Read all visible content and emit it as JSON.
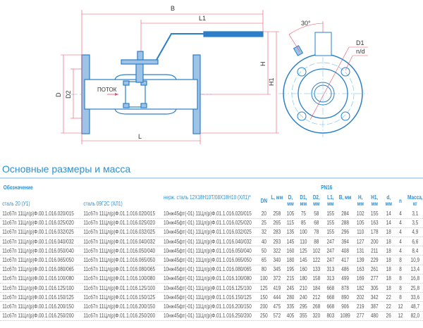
{
  "drawing": {
    "labels": {
      "B": "B",
      "L1": "L1",
      "H": "H",
      "H1": "H1",
      "D": "D",
      "D2": "D2",
      "flow": "ПОТОК",
      "L": "L",
      "angle": "30°",
      "D1": "D1",
      "nd": "n/d"
    }
  },
  "section_title": "Основные размеры и масса",
  "table": {
    "designation_header": "Обозначение",
    "group_header": "PN16",
    "columns": [
      "сталь 20 (У1)",
      "сталь 09Г2С (ХЛ1)",
      "нерж. сталь 12Х18Н10Т/08Х18Н10 (ХЛ1)*",
      "DN",
      "L, мм",
      "D, мм",
      "D1, мм",
      "D2, мм",
      "L1, мм",
      "B, мм",
      "H, мм",
      "H1, мм",
      "d, мм",
      "n",
      "Масса, кг"
    ],
    "rows": [
      [
        "11с67п 11Цл(р)Ф.00.1.016.020/015",
        "11с67п 11Цл(р)Ф.01.1.016.020/015",
        "10нж45фт(-01) 11Цл(р)Ф.01.1.016.020/015",
        "20",
        "258",
        "105",
        "75",
        "58",
        "155",
        "284",
        "102",
        "155",
        "14",
        "4",
        "3,1"
      ],
      [
        "11с67п 11Цл(р)Ф.00.1.016.025/020",
        "11с67п 11Цл(р)Ф.01.1.016.025/020",
        "10нж45фт(-01) 11Цл(р)Ф.01.1.016.025/020",
        "25",
        "265",
        "115",
        "85",
        "68",
        "155",
        "288",
        "105",
        "163",
        "14",
        "4",
        "3,5"
      ],
      [
        "11с67п 11Цл(р)Ф.00.1.016.032/025",
        "11с67п 11Цл(р)Ф.01.1.016.032/025",
        "10нж45фт(-01) 11Цл(р)Ф.01.1.016.032/025",
        "32",
        "283",
        "135",
        "100",
        "78",
        "155",
        "296",
        "110",
        "178",
        "18",
        "4",
        "4,9"
      ],
      [
        "11с67п 11Цл(р)Ф.00.1.016.040/032",
        "11с67п 11Цл(р)Ф.01.1.016.040/032",
        "10нж45фт(-01) 11Цл(р)Ф.01.1.016.040/032",
        "40",
        "293",
        "145",
        "110",
        "88",
        "247",
        "394",
        "127",
        "200",
        "18",
        "4",
        "6,6"
      ],
      [
        "11с67п 11Цл(р)Ф.00.1.016.050/040",
        "11с67п 11Цл(р)Ф.01.1.016.050/040",
        "10нж45фт(-01) 11Цл(р)Ф.01.1.016.050/040",
        "50",
        "322",
        "160",
        "125",
        "102",
        "247",
        "408",
        "131",
        "211",
        "18",
        "4",
        "8,4"
      ],
      [
        "11с67п 11Цл(р)Ф.00.1.016.065/050",
        "11с67п 11Цл(р)Ф.01.1.016.065/050",
        "10нж45фт(-01) 11Цл(р)Ф.01.1.016.065/050",
        "65",
        "340",
        "180",
        "145",
        "122",
        "247",
        "417",
        "139",
        "229",
        "18",
        "8",
        "10,9"
      ],
      [
        "11с67п 11Цл(р)Ф.00.1.016.080/065",
        "11с67п 11Цл(р)Ф.01.1.016.080/065",
        "10нж45фт(-01) 11Цл(р)Ф.01.1.016.080/065",
        "80",
        "345",
        "195",
        "160",
        "133",
        "313",
        "486",
        "163",
        "261",
        "18",
        "8",
        "13,4"
      ],
      [
        "11с67п 11Цл(р)Ф.00.1.016.100/080",
        "11с67п 11Цл(р)Ф.01.1.016.100/080",
        "10нж45фт(-01) 11Цл(р)Ф.01.1.016.100/080",
        "100",
        "372",
        "215",
        "180",
        "158",
        "313",
        "499",
        "169",
        "277",
        "18",
        "8",
        "16,8"
      ],
      [
        "11с67п 11Цл(р)Ф.00.1.016.125/100",
        "11с67п 11Цл(р)Ф.01.1.016.125/100",
        "10нж45фт(-01) 11Цл(р)Ф.01.1.016.125/100",
        "125",
        "419",
        "245",
        "210",
        "184",
        "668",
        "878",
        "182",
        "305",
        "18",
        "8",
        "25,8"
      ],
      [
        "11с67п 11Цл(р)Ф.00.1.016.150/125",
        "11с67п 11Цл(р)Ф.01.1.016.150/125",
        "10нж45фт(-01) 11Цл(р)Ф.01.1.016.150/125",
        "150",
        "444",
        "280",
        "240",
        "212",
        "668",
        "890",
        "202",
        "342",
        "22",
        "8",
        "33,6"
      ],
      [
        "11с67п 11Цл(р)Ф.00.1.016.200/150",
        "11с67п 11Цл(р)Ф.01.1.016.200/150",
        "10нж45фт(-01) 11Цл(р)Ф.01.1.016.200/150",
        "200",
        "475",
        "335",
        "295",
        "268",
        "668",
        "906",
        "219",
        "387",
        "22",
        "12",
        "48,7"
      ],
      [
        "11с67п 11Цл(р)Ф.00.1.016.250/200",
        "11с67п 11Цл(р)Ф.01.1.016.250/200",
        "10нж45фт(-01) 11Цл(р)Ф.01.1.016.250/200",
        "250",
        "572",
        "405",
        "355",
        "320",
        "803",
        "1089",
        "277",
        "480",
        "26",
        "12",
        "82,0"
      ]
    ]
  },
  "colors": {
    "accent": "#2f8fd0",
    "valve_fill": "#9fc3e6",
    "valve_stroke": "#2a7fc8",
    "dimension": "#e8506a",
    "handle": "#2a7fc8"
  }
}
